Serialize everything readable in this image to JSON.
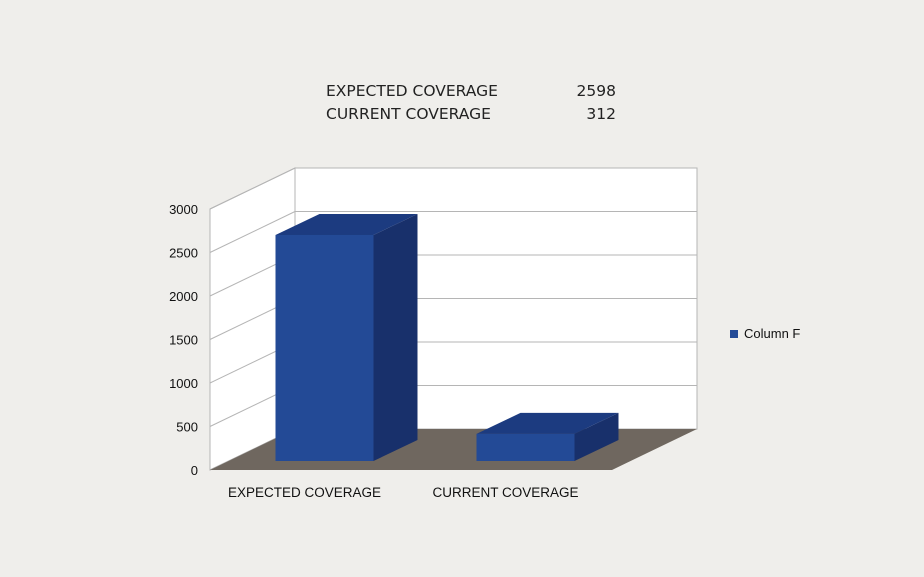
{
  "summary": {
    "rows": [
      {
        "label": "EXPECTED COVERAGE",
        "value": "2598"
      },
      {
        "label": "CURRENT COVERAGE",
        "value": "312"
      }
    ]
  },
  "colors": {
    "bar_front": "#234a96",
    "bar_side": "#18306b",
    "bar_top": "#1c3b80",
    "floor": "#6f675f",
    "wall": "#ffffff",
    "grid": "#b5b5b5"
  },
  "chart_data": {
    "type": "bar",
    "categories": [
      "EXPECTED COVERAGE",
      "CURRENT COVERAGE"
    ],
    "series": [
      {
        "name": "Column F",
        "values": [
          2598,
          312
        ]
      }
    ],
    "ylim": [
      0,
      3000
    ],
    "yticks": [
      "0",
      "500",
      "1000",
      "1500",
      "2000",
      "2500",
      "3000"
    ],
    "yticks_values": [
      0,
      500,
      1000,
      1500,
      2000,
      2500,
      3000
    ],
    "grid": true,
    "legend_position": "right",
    "style": "3d"
  }
}
